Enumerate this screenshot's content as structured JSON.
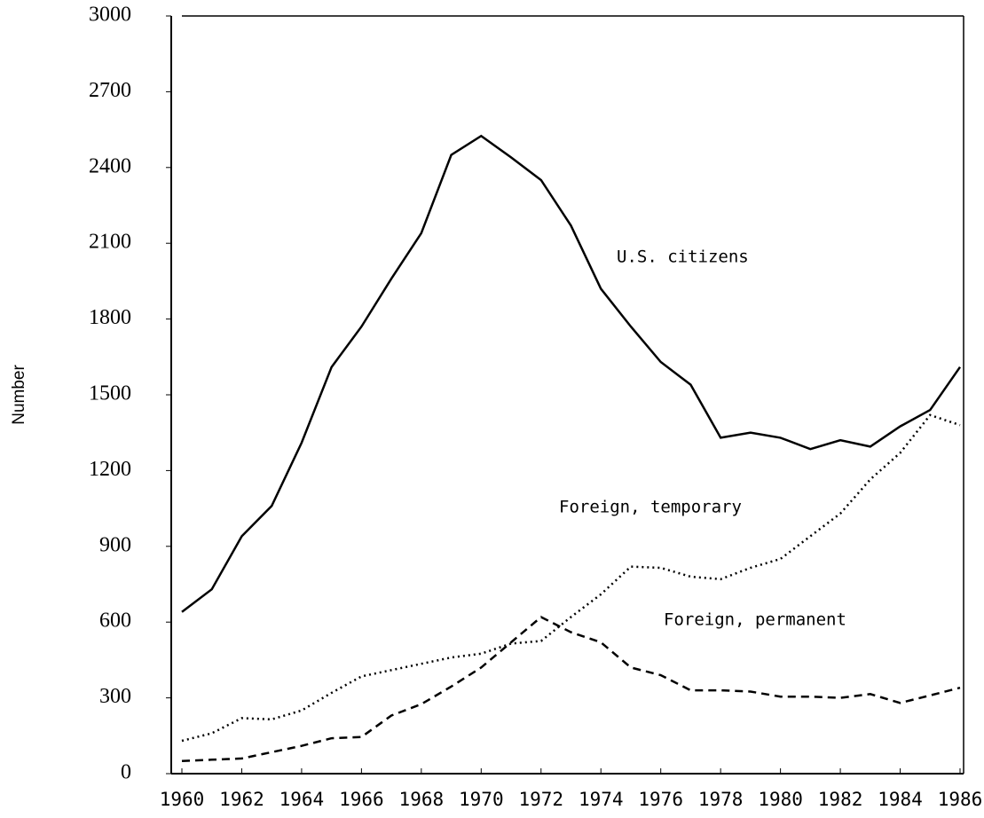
{
  "chart_data": {
    "type": "line",
    "y_label": "Number",
    "x": [
      1960,
      1961,
      1962,
      1963,
      1964,
      1965,
      1966,
      1967,
      1968,
      1969,
      1970,
      1971,
      1972,
      1973,
      1974,
      1975,
      1976,
      1977,
      1978,
      1979,
      1980,
      1981,
      1982,
      1983,
      1984,
      1985,
      1986
    ],
    "series": [
      {
        "name": "U.S. citizens",
        "color": "#000000",
        "dash": "solid",
        "values": [
          640,
          730,
          940,
          1060,
          1310,
          1610,
          1770,
          1960,
          2140,
          2450,
          2525,
          2440,
          2350,
          2170,
          1920,
          1770,
          1630,
          1540,
          1330,
          1350,
          1330,
          1285,
          1320,
          1295,
          1375,
          1440,
          1610
        ]
      },
      {
        "name": "Foreign, temporary",
        "color": "#000000",
        "dash": "dotted",
        "values": [
          130,
          160,
          220,
          215,
          250,
          320,
          385,
          410,
          435,
          460,
          475,
          515,
          525,
          620,
          710,
          820,
          815,
          780,
          770,
          815,
          850,
          940,
          1030,
          1165,
          1270,
          1420,
          1380
        ]
      },
      {
        "name": "Foreign, permanent",
        "color": "#000000",
        "dash": "dashed",
        "values": [
          50,
          55,
          60,
          85,
          110,
          140,
          145,
          230,
          275,
          345,
          420,
          520,
          620,
          560,
          520,
          420,
          390,
          330,
          330,
          325,
          305,
          305,
          300,
          315,
          280,
          310,
          340
        ]
      }
    ],
    "xlim": [
      1960,
      1986
    ],
    "xticks": [
      1960,
      1962,
      1964,
      1966,
      1968,
      1970,
      1972,
      1974,
      1976,
      1978,
      1980,
      1982,
      1984,
      1986
    ],
    "ylim": [
      0,
      3000
    ],
    "yticks": [
      0,
      300,
      600,
      900,
      1200,
      1500,
      1800,
      2100,
      2400,
      2700,
      3000
    ],
    "grid": false
  }
}
